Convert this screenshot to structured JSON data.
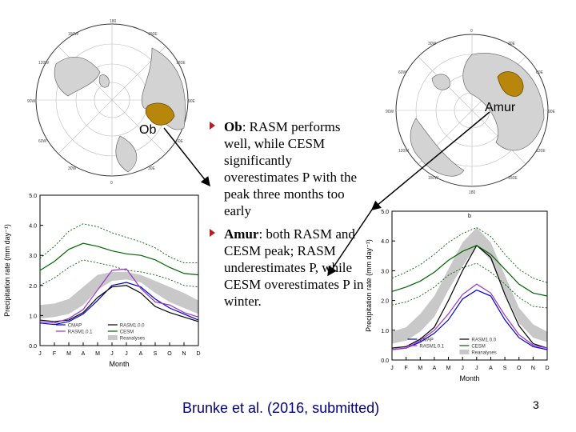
{
  "map_left": {
    "region_label": "Ob",
    "lon_labels": [
      "180",
      "150W",
      "150E",
      "120W",
      "120E",
      "90W",
      "90E",
      "60W",
      "60E",
      "30W",
      "30E",
      "0"
    ]
  },
  "map_right": {
    "region_label": "Amur",
    "lon_labels": [
      "0",
      "30W",
      "30E",
      "60W",
      "60E",
      "90W",
      "90E",
      "120W",
      "120E",
      "150W",
      "150E",
      "180"
    ]
  },
  "bullets": [
    {
      "term": "Ob",
      "text": ": RASM performs well, while CESM significantly overestimates P with the peak three months too early"
    },
    {
      "term": "Amur",
      "text": ": both RASM and CESM peak; RASM underestimates P, while CESM overestimates P in winter."
    }
  ],
  "citation": "Brunke et al. (2016, submitted)",
  "page_number": "3",
  "colors": {
    "arrow": "#000000",
    "bullet_marker": "#b22222",
    "citation": "#000080",
    "basin_fill": "#b8860b",
    "land_fill": "#d3d3d3",
    "reanalysis_band": "#c8c8c8"
  },
  "chart_data": [
    {
      "type": "line",
      "ylabel": "Precipitation rate (mm day⁻¹)",
      "xlabel": "Month",
      "categories": [
        "J",
        "F",
        "M",
        "A",
        "M",
        "J",
        "J",
        "A",
        "S",
        "O",
        "N",
        "D"
      ],
      "ylim": [
        0,
        5
      ],
      "yticks": [
        "0.0",
        "1.0",
        "2.0",
        "3.0",
        "4.0",
        "5.0"
      ],
      "legend_position": "bottom-center",
      "series": [
        {
          "name": "CMAP",
          "color": "#0000cd",
          "dash": "none",
          "values": [
            0.75,
            0.7,
            0.8,
            1.05,
            1.5,
            2.0,
            2.1,
            1.95,
            1.55,
            1.25,
            1.05,
            0.85
          ]
        },
        {
          "name": "RASM1.0.0",
          "color": "#000000",
          "dash": "none",
          "values": [
            0.85,
            0.8,
            0.85,
            1.1,
            1.6,
            1.95,
            2.0,
            1.75,
            1.3,
            1.1,
            0.95,
            0.8
          ]
        },
        {
          "name": "RASM1.0.1",
          "color": "#9932cc",
          "dash": "none",
          "values": [
            0.8,
            0.75,
            0.9,
            1.2,
            1.85,
            2.5,
            2.55,
            1.9,
            1.45,
            1.35,
            1.1,
            0.95
          ]
        },
        {
          "name": "CESM",
          "color": "#006400",
          "dash": "none",
          "values": [
            2.5,
            2.8,
            3.2,
            3.4,
            3.3,
            3.15,
            3.05,
            3.0,
            2.85,
            2.6,
            2.4,
            2.35
          ]
        }
      ],
      "envelope_series": [
        {
          "values": [
            2.9,
            3.3,
            3.8,
            4.05,
            3.95,
            3.75,
            3.6,
            3.45,
            3.25,
            2.95,
            2.75,
            2.75
          ]
        },
        {
          "values": [
            2.0,
            2.25,
            2.6,
            2.85,
            2.75,
            2.65,
            2.5,
            2.45,
            2.35,
            2.2,
            2.0,
            1.95
          ]
        }
      ],
      "band": {
        "name": "Reanalyses",
        "lower": [
          0.9,
          0.95,
          1.05,
          1.35,
          1.85,
          2.15,
          2.2,
          2.1,
          1.75,
          1.45,
          1.25,
          1.05
        ],
        "upper": [
          1.35,
          1.4,
          1.55,
          1.95,
          2.35,
          2.45,
          2.45,
          2.35,
          2.15,
          1.95,
          1.75,
          1.5
        ]
      }
    },
    {
      "type": "line",
      "title": "b",
      "ylabel": "Precipitation rate (mm day⁻¹)",
      "xlabel": "Month",
      "categories": [
        "J",
        "F",
        "M",
        "A",
        "M",
        "J",
        "J",
        "A",
        "S",
        "O",
        "N",
        "D"
      ],
      "ylim": [
        0,
        5
      ],
      "yticks": [
        "0.0",
        "1.0",
        "2.0",
        "3.0",
        "4.0",
        "5.0"
      ],
      "legend_position": "bottom-center",
      "series": [
        {
          "name": "CMAP",
          "color": "#0000cd",
          "dash": "none",
          "values": [
            0.35,
            0.4,
            0.6,
            0.9,
            1.35,
            2.05,
            2.35,
            2.15,
            1.35,
            0.75,
            0.45,
            0.35
          ]
        },
        {
          "name": "RASM1.0.0",
          "color": "#000000",
          "dash": "none",
          "values": [
            0.4,
            0.45,
            0.7,
            1.1,
            2.0,
            3.0,
            3.85,
            3.45,
            2.2,
            1.15,
            0.55,
            0.4
          ]
        },
        {
          "name": "RASM1.0.1",
          "color": "#9932cc",
          "dash": "none",
          "values": [
            0.35,
            0.4,
            0.65,
            1.0,
            1.55,
            2.2,
            2.55,
            2.25,
            1.5,
            0.85,
            0.5,
            0.4
          ]
        },
        {
          "name": "CESM",
          "color": "#006400",
          "dash": "none",
          "values": [
            2.3,
            2.45,
            2.65,
            2.95,
            3.35,
            3.65,
            3.85,
            3.55,
            3.05,
            2.55,
            2.25,
            2.15
          ]
        }
      ],
      "envelope_series": [
        {
          "values": [
            2.75,
            2.95,
            3.2,
            3.55,
            3.95,
            4.25,
            4.45,
            4.15,
            3.55,
            3.05,
            2.75,
            2.6
          ]
        },
        {
          "values": [
            1.85,
            1.95,
            2.15,
            2.45,
            2.85,
            3.1,
            3.25,
            2.95,
            2.55,
            2.1,
            1.8,
            1.75
          ]
        }
      ],
      "band": {
        "name": "Reanalyses",
        "lower": [
          0.55,
          0.65,
          0.95,
          1.45,
          2.35,
          3.15,
          3.85,
          3.35,
          2.25,
          1.25,
          0.75,
          0.6
        ],
        "upper": [
          0.95,
          1.1,
          1.55,
          2.15,
          3.05,
          3.95,
          4.45,
          3.95,
          2.85,
          1.75,
          1.2,
          0.95
        ]
      }
    }
  ]
}
